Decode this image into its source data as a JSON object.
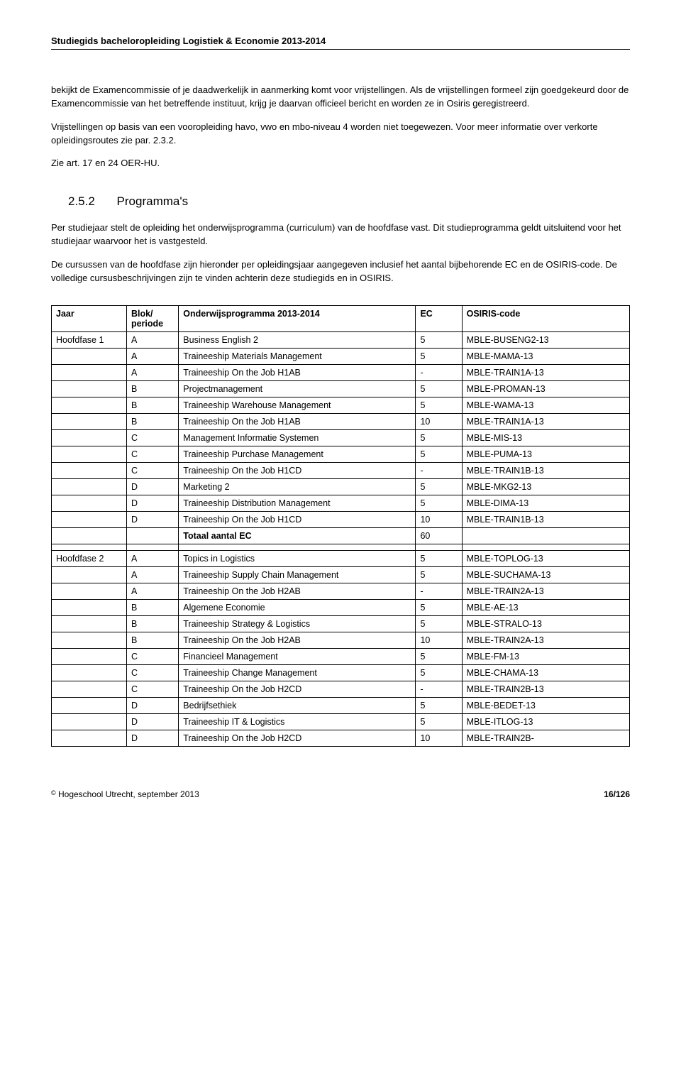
{
  "header": "Studiegids bacheloropleiding Logistiek & Economie 2013-2014",
  "intro": {
    "p1": "bekijkt de Examencommissie of je daadwerkelijk in aanmerking komt voor vrijstellingen. Als de vrijstellingen formeel zijn goedgekeurd door de Examencommissie van het betreffende instituut, krijg je daarvan officieel bericht en worden ze in Osiris geregistreerd.",
    "p2": "Vrijstellingen op basis van een vooropleiding havo, vwo en mbo-niveau 4 worden niet toegewezen. Voor meer informatie over verkorte opleidingsroutes zie par. 2.3.2.",
    "p3": "Zie art. 17 en 24 OER-HU."
  },
  "section": {
    "num": "2.5.2",
    "title": "Programma's"
  },
  "body": {
    "p1": "Per studiejaar stelt de opleiding het onderwijsprogramma (curriculum) van de hoofdfase vast. Dit studieprogramma geldt uitsluitend voor het studiejaar waarvoor het is vastgesteld.",
    "p2": "De cursussen van de hoofdfase zijn hieronder per opleidingsjaar aangegeven inclusief het aantal bijbehorende EC en de OSIRIS-code. De volledige cursusbeschrijvingen zijn te vinden achterin deze studiegids en in OSIRIS."
  },
  "table": {
    "headers": {
      "jaar": "Jaar",
      "blok": "Blok/ periode",
      "prog": "Onderwijsprogramma 2013-2014",
      "ec": "EC",
      "code": "OSIRIS-code"
    },
    "rows": [
      {
        "jaar": "Hoofdfase 1",
        "blok": "A",
        "prog": "Business English 2",
        "ec": "5",
        "code": "MBLE-BUSENG2-13"
      },
      {
        "jaar": "",
        "blok": "A",
        "prog": "Traineeship Materials Management",
        "ec": "5",
        "code": "MBLE-MAMA-13"
      },
      {
        "jaar": "",
        "blok": "A",
        "prog": "Traineeship On the Job H1AB",
        "ec": "-",
        "code": "MBLE-TRAIN1A-13"
      },
      {
        "jaar": "",
        "blok": "B",
        "prog": "Projectmanagement",
        "ec": "5",
        "code": "MBLE-PROMAN-13"
      },
      {
        "jaar": "",
        "blok": "B",
        "prog": "Traineeship Warehouse Management",
        "ec": "5",
        "code": "MBLE-WAMA-13"
      },
      {
        "jaar": "",
        "blok": "B",
        "prog": "Traineeship On the Job H1AB",
        "ec": "10",
        "code": "MBLE-TRAIN1A-13"
      },
      {
        "jaar": "",
        "blok": "C",
        "prog": "Management Informatie Systemen",
        "ec": "5",
        "code": "MBLE-MIS-13"
      },
      {
        "jaar": "",
        "blok": "C",
        "prog": "Traineeship Purchase Management",
        "ec": "5",
        "code": "MBLE-PUMA-13"
      },
      {
        "jaar": "",
        "blok": "C",
        "prog": "Traineeship On the Job H1CD",
        "ec": "-",
        "code": "MBLE-TRAIN1B-13"
      },
      {
        "jaar": "",
        "blok": "D",
        "prog": "Marketing 2",
        "ec": "5",
        "code": "MBLE-MKG2-13"
      },
      {
        "jaar": "",
        "blok": "D",
        "prog": "Traineeship Distribution Management",
        "ec": "5",
        "code": "MBLE-DIMA-13"
      },
      {
        "jaar": "",
        "blok": "D",
        "prog": "Traineeship On the Job H1CD",
        "ec": "10",
        "code": "MBLE-TRAIN1B-13"
      },
      {
        "jaar": "",
        "blok": "",
        "prog": "Totaal aantal EC",
        "ec": "60",
        "code": ""
      },
      {
        "jaar": "",
        "blok": "",
        "prog": "",
        "ec": "",
        "code": ""
      },
      {
        "jaar": "Hoofdfase 2",
        "blok": "A",
        "prog": "Topics in Logistics",
        "ec": "5",
        "code": "MBLE-TOPLOG-13"
      },
      {
        "jaar": "",
        "blok": "A",
        "prog": "Traineeship Supply Chain Management",
        "ec": "5",
        "code": "MBLE-SUCHAMA-13"
      },
      {
        "jaar": "",
        "blok": "A",
        "prog": "Traineeship On the Job H2AB",
        "ec": "-",
        "code": "MBLE-TRAIN2A-13"
      },
      {
        "jaar": "",
        "blok": "B",
        "prog": "Algemene Economie",
        "ec": "5",
        "code": "MBLE-AE-13"
      },
      {
        "jaar": "",
        "blok": "B",
        "prog": "Traineeship Strategy & Logistics",
        "ec": "5",
        "code": "MBLE-STRALO-13"
      },
      {
        "jaar": "",
        "blok": "B",
        "prog": "Traineeship On the Job H2AB",
        "ec": "10",
        "code": "MBLE-TRAIN2A-13"
      },
      {
        "jaar": "",
        "blok": "C",
        "prog": "Financieel Management",
        "ec": "5",
        "code": "MBLE-FM-13"
      },
      {
        "jaar": "",
        "blok": "C",
        "prog": "Traineeship Change Management",
        "ec": "5",
        "code": "MBLE-CHAMA-13"
      },
      {
        "jaar": "",
        "blok": "C",
        "prog": "Traineeship On the Job H2CD",
        "ec": "-",
        "code": "MBLE-TRAIN2B-13"
      },
      {
        "jaar": "",
        "blok": "D",
        "prog": "Bedrijfsethiek",
        "ec": "5",
        "code": "MBLE-BEDET-13"
      },
      {
        "jaar": "",
        "blok": "D",
        "prog": "Traineeship IT & Logistics",
        "ec": "5",
        "code": "MBLE-ITLOG-13"
      },
      {
        "jaar": "",
        "blok": "D",
        "prog": "Traineeship On the Job H2CD",
        "ec": "10",
        "code": "MBLE-TRAIN2B-"
      }
    ],
    "bold_prog_indices": [
      12
    ]
  },
  "footer": {
    "left_prefix": " Hogeschool Utrecht, september 2013",
    "right": "16/126"
  }
}
